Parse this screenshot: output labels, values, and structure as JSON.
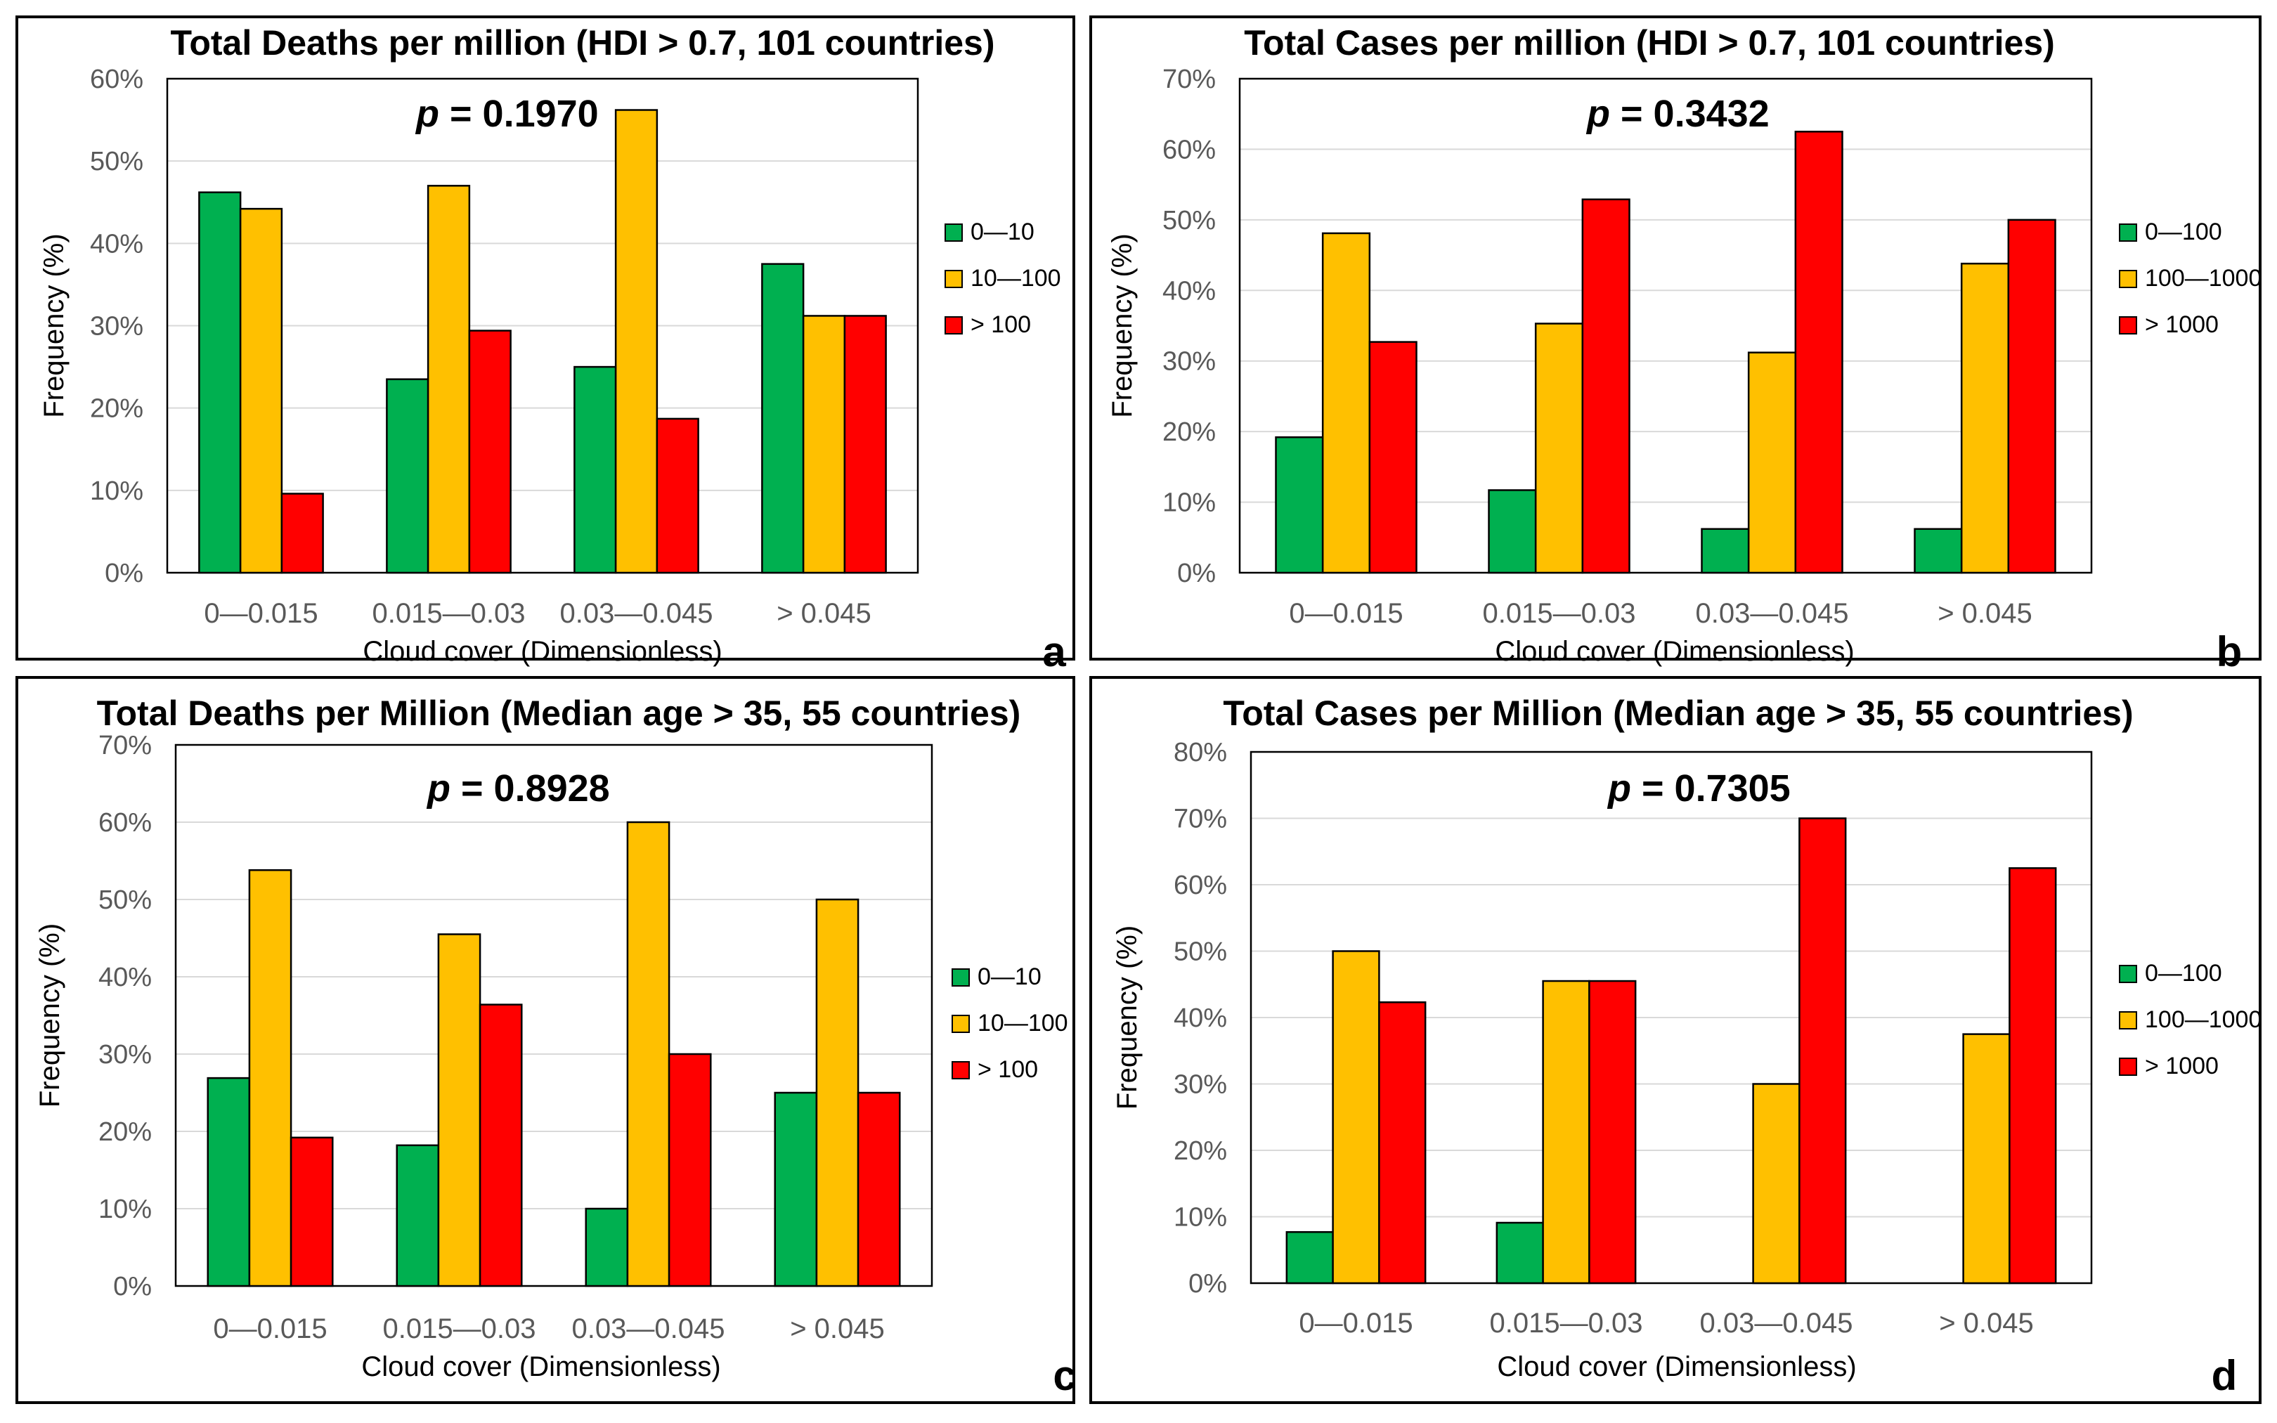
{
  "colors": {
    "green": "#00b050",
    "yellow": "#ffc000",
    "red": "#ff0000",
    "grid": "#d9d9d9",
    "tick_text": "#595959",
    "frame": "#000000"
  },
  "chart_data": [
    {
      "id": "a",
      "type": "bar",
      "title": "Total Deaths per million (HDI > 0.7, 101 countries)",
      "p_label": "p",
      "p_value": " = 0.1970",
      "panel_letter": "a",
      "xlabel": "Cloud cover (Dimensionless)",
      "ylabel": "Frequency (%)",
      "ylim": [
        0,
        60
      ],
      "yticks": [
        0,
        10,
        20,
        30,
        40,
        50,
        60
      ],
      "ytick_labels": [
        "0%",
        "10%",
        "20%",
        "30%",
        "40%",
        "50%",
        "60%"
      ],
      "categories": [
        "0—0.015",
        "0.015—0.03",
        "0.03—0.045",
        "> 0.045"
      ],
      "legend_position": "right",
      "series": [
        {
          "name": "0—10",
          "color": "#00b050",
          "values": [
            46.2,
            23.5,
            25.0,
            37.5
          ]
        },
        {
          "name": "10—100",
          "color": "#ffc000",
          "values": [
            44.2,
            47.0,
            56.2,
            31.2
          ]
        },
        {
          "name": "> 100",
          "color": "#ff0000",
          "values": [
            9.6,
            29.4,
            18.7,
            31.2
          ]
        }
      ]
    },
    {
      "id": "b",
      "type": "bar",
      "title": "Total Cases per million (HDI > 0.7, 101 countries)",
      "p_label": "p",
      "p_value": " = 0.3432",
      "panel_letter": "b",
      "xlabel": "Cloud cover (Dimensionless)",
      "ylabel": "Frequency (%)",
      "ylim": [
        0,
        70
      ],
      "yticks": [
        0,
        10,
        20,
        30,
        40,
        50,
        60,
        70
      ],
      "ytick_labels": [
        "0%",
        "10%",
        "20%",
        "30%",
        "40%",
        "50%",
        "60%",
        "70%"
      ],
      "categories": [
        "0—0.015",
        "0.015—0.03",
        "0.03—0.045",
        "> 0.045"
      ],
      "legend_position": "right",
      "series": [
        {
          "name": "0—100",
          "color": "#00b050",
          "values": [
            19.2,
            11.7,
            6.2,
            6.2
          ]
        },
        {
          "name": "100—1000",
          "color": "#ffc000",
          "values": [
            48.1,
            35.3,
            31.2,
            43.8
          ]
        },
        {
          "name": "> 1000",
          "color": "#ff0000",
          "values": [
            32.7,
            52.9,
            62.5,
            50.0
          ]
        }
      ]
    },
    {
      "id": "c",
      "type": "bar",
      "title": "Total Deaths per Million (Median age > 35, 55 countries)",
      "p_label": "p",
      "p_value": " = 0.8928",
      "panel_letter": "c",
      "xlabel": "Cloud cover (Dimensionless)",
      "ylabel": "Frequency (%)",
      "ylim": [
        0,
        70
      ],
      "yticks": [
        0,
        10,
        20,
        30,
        40,
        50,
        60,
        70
      ],
      "ytick_labels": [
        "0%",
        "10%",
        "20%",
        "30%",
        "40%",
        "50%",
        "60%",
        "70%"
      ],
      "categories": [
        "0—0.015",
        "0.015—0.03",
        "0.03—0.045",
        "> 0.045"
      ],
      "legend_position": "right",
      "series": [
        {
          "name": "0—10",
          "color": "#00b050",
          "values": [
            26.9,
            18.2,
            10.0,
            25.0
          ]
        },
        {
          "name": "10—100",
          "color": "#ffc000",
          "values": [
            53.8,
            45.5,
            60.0,
            50.0
          ]
        },
        {
          "name": "> 100",
          "color": "#ff0000",
          "values": [
            19.2,
            36.4,
            30.0,
            25.0
          ]
        }
      ]
    },
    {
      "id": "d",
      "type": "bar",
      "title": "Total Cases per Million (Median age > 35, 55 countries)",
      "p_label": "p",
      "p_value": " = 0.7305",
      "panel_letter": "d",
      "xlabel": "Cloud cover (Dimensionless)",
      "ylabel": "Frequency (%)",
      "ylim": [
        0,
        80
      ],
      "yticks": [
        0,
        10,
        20,
        30,
        40,
        50,
        60,
        70,
        80
      ],
      "ytick_labels": [
        "0%",
        "10%",
        "20%",
        "30%",
        "40%",
        "50%",
        "60%",
        "70%",
        "80%"
      ],
      "categories": [
        "0—0.015",
        "0.015—0.03",
        "0.03—0.045",
        "> 0.045"
      ],
      "legend_position": "right",
      "series": [
        {
          "name": "0—100",
          "color": "#00b050",
          "values": [
            7.7,
            9.1,
            0,
            0
          ]
        },
        {
          "name": "100—1000",
          "color": "#ffc000",
          "values": [
            50.0,
            45.5,
            30.0,
            37.5
          ]
        },
        {
          "name": "> 1000",
          "color": "#ff0000",
          "values": [
            42.3,
            45.5,
            70.0,
            62.5
          ]
        }
      ]
    }
  ]
}
